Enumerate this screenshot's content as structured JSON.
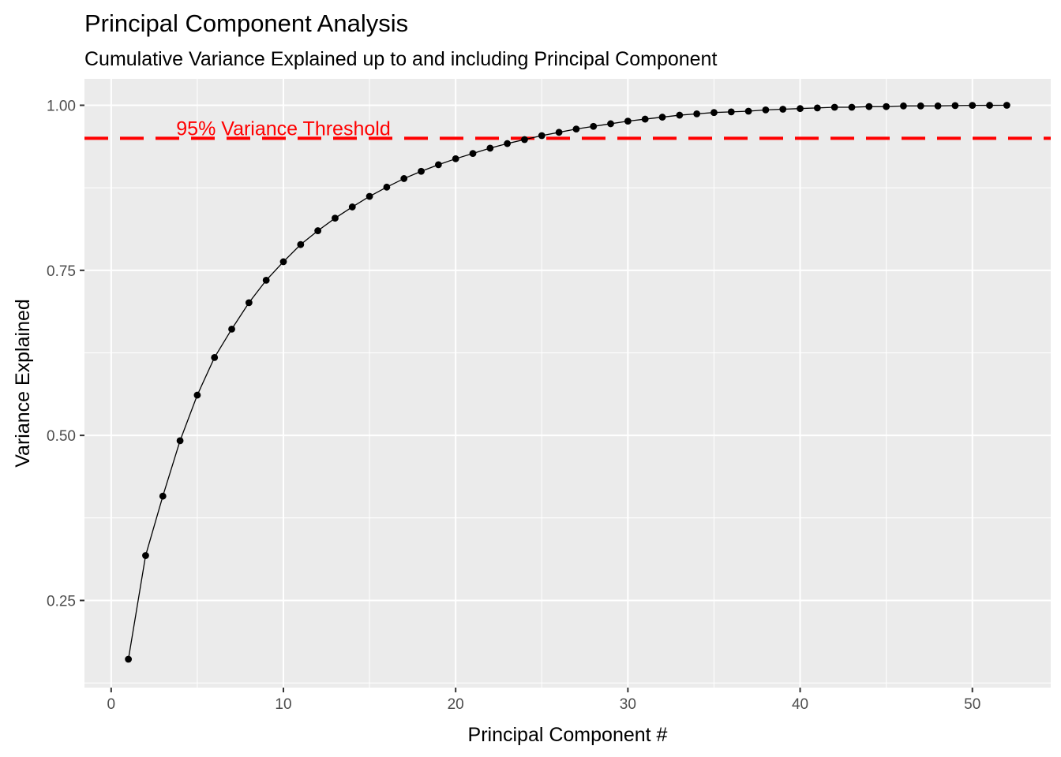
{
  "chart_data": {
    "type": "line",
    "title": "Principal Component Analysis",
    "subtitle": "Cumulative Variance Explained up to and including Principal Component",
    "xlabel": "Principal Component #",
    "ylabel": "Variance Explained",
    "xlim": [
      -1.55,
      54.55
    ],
    "ylim": [
      0.118,
      1.04
    ],
    "x_ticks": [
      0,
      10,
      20,
      30,
      40,
      50
    ],
    "x_tick_labels": [
      "0",
      "10",
      "20",
      "30",
      "40",
      "50"
    ],
    "y_ticks": [
      0.25,
      0.5,
      0.75,
      1.0
    ],
    "y_tick_labels": [
      "0.25",
      "0.50",
      "0.75",
      "1.00"
    ],
    "grid": true,
    "legend": "none",
    "background_color": "#ebebeb",
    "grid_color": "#ffffff",
    "series": [
      {
        "color": "#000000",
        "marker": "circle",
        "x": [
          1,
          2,
          3,
          4,
          5,
          6,
          7,
          8,
          9,
          10,
          11,
          12,
          13,
          14,
          15,
          16,
          17,
          18,
          19,
          20,
          21,
          22,
          23,
          24,
          25,
          26,
          27,
          28,
          29,
          30,
          31,
          32,
          33,
          34,
          35,
          36,
          37,
          38,
          39,
          40,
          41,
          42,
          43,
          44,
          45,
          46,
          47,
          48,
          49,
          50,
          51,
          52
        ],
        "y": [
          0.161,
          0.318,
          0.408,
          0.492,
          0.561,
          0.618,
          0.661,
          0.701,
          0.735,
          0.763,
          0.789,
          0.81,
          0.829,
          0.846,
          0.862,
          0.876,
          0.889,
          0.9,
          0.91,
          0.919,
          0.927,
          0.935,
          0.942,
          0.948,
          0.954,
          0.959,
          0.964,
          0.968,
          0.972,
          0.976,
          0.979,
          0.982,
          0.985,
          0.987,
          0.989,
          0.99,
          0.991,
          0.993,
          0.994,
          0.995,
          0.996,
          0.997,
          0.997,
          0.998,
          0.998,
          0.999,
          0.999,
          0.999,
          0.9995,
          0.9998,
          0.9999,
          1.0
        ]
      }
    ],
    "threshold": {
      "value": 0.95,
      "label": "95% Variance Threshold",
      "label_x": 10,
      "color": "#ff0000",
      "style": "dashed"
    }
  }
}
